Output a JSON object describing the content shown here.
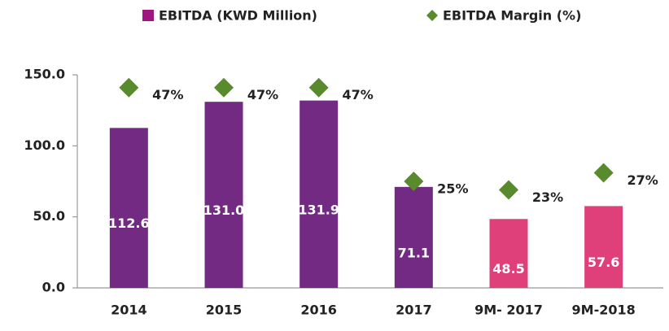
{
  "chart_data": {
    "type": "bar",
    "categories": [
      "2014",
      "2015",
      "2016",
      "2017",
      "9M- 2017",
      "9M-2018"
    ],
    "series": [
      {
        "name": "EBITDA (KWD Million)",
        "type": "bar",
        "color": "#a0157f",
        "colors": [
          "#722a82",
          "#722a82",
          "#722a82",
          "#722a82",
          "#e0407a",
          "#e0407a"
        ],
        "values": [
          112.6,
          131.0,
          131.9,
          71.1,
          48.5,
          57.6
        ],
        "value_labels": [
          "112.6",
          "131.0",
          "131.9",
          "71.1",
          "48.5",
          "57.6"
        ]
      },
      {
        "name": "EBITDA Margin (%)",
        "type": "scatter",
        "axis": "y2",
        "color": "#5a8a2e",
        "values": [
          47,
          47,
          47,
          25,
          23,
          27
        ],
        "value_labels": [
          "47%",
          "47%",
          "47%",
          "25%",
          "23%",
          "27%"
        ]
      }
    ],
    "ylim": [
      0,
      150
    ],
    "yticks": [
      {
        "value": 0,
        "label": "0.0"
      },
      {
        "value": 50,
        "label": "50.0"
      },
      {
        "value": 100,
        "label": "100.0"
      },
      {
        "value": 150,
        "label": "150.0"
      }
    ],
    "y2lim": [
      0,
      50
    ],
    "legend": "top"
  }
}
